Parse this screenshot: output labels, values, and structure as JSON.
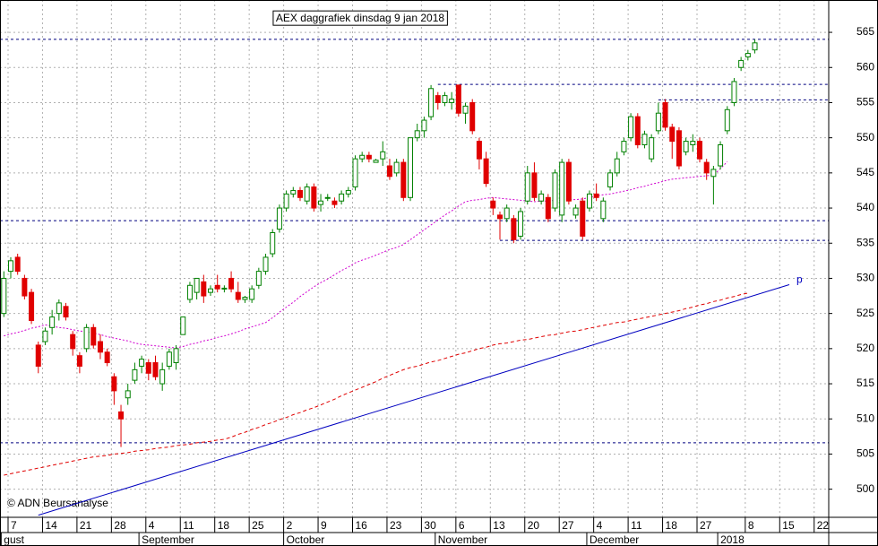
{
  "chart_data": {
    "type": "candlestick",
    "title": "AEX daggrafiek dinsdag 9 jan 2018",
    "credit": "© ADN Beursanalyse",
    "up_color": "#008000",
    "down_color": "#e00000",
    "up_fill": "#ffffff",
    "grid": true,
    "ylim": [
      496,
      569.6
    ],
    "yticks": [
      500,
      505,
      510,
      515,
      520,
      525,
      530,
      535,
      540,
      545,
      550,
      555,
      560,
      565
    ],
    "categories": [
      null,
      "7",
      null,
      null,
      null,
      null,
      "14",
      null,
      null,
      null,
      null,
      "21",
      null,
      null,
      null,
      null,
      "28",
      null,
      null,
      null,
      null,
      "4",
      null,
      null,
      null,
      null,
      "11",
      null,
      null,
      null,
      null,
      "18",
      null,
      null,
      null,
      null,
      "25",
      null,
      null,
      null,
      null,
      "2",
      null,
      null,
      null,
      null,
      "9",
      null,
      null,
      null,
      null,
      "16",
      null,
      null,
      null,
      null,
      "23",
      null,
      null,
      null,
      null,
      "30",
      null,
      null,
      null,
      null,
      "6",
      null,
      null,
      null,
      null,
      "13",
      null,
      null,
      null,
      null,
      "20",
      null,
      null,
      null,
      null,
      "27",
      null,
      null,
      null,
      null,
      "4",
      null,
      null,
      null,
      null,
      "11",
      null,
      null,
      null,
      null,
      "18",
      null,
      null,
      null,
      null,
      "27",
      null,
      null,
      null,
      null,
      null,
      null,
      "8",
      null,
      null,
      null,
      null,
      "15",
      null,
      null,
      null,
      null,
      "22",
      null
    ],
    "months": [
      {
        "label": "gust",
        "at": 0
      },
      {
        "label": "September",
        "at": 20
      },
      {
        "label": "October",
        "at": 41
      },
      {
        "label": "November",
        "at": 63
      },
      {
        "label": "December",
        "at": 85
      },
      {
        "label": "2018",
        "at": 104
      }
    ],
    "open": [
      525,
      531,
      533,
      530,
      528,
      520.5,
      521,
      523,
      525,
      526,
      522,
      519,
      520,
      523,
      521,
      519.5,
      516,
      511,
      513,
      515.5,
      517.5,
      518,
      518,
      515,
      517.5,
      518,
      522,
      527,
      528,
      529.5,
      528,
      529,
      528.5,
      530,
      528,
      527,
      527,
      529,
      531,
      533.5,
      537,
      540,
      542,
      542.5,
      541,
      543,
      540.5,
      541.5,
      541,
      541,
      542,
      543,
      547,
      547.5,
      546.5,
      547,
      546,
      545,
      546.5,
      541.5,
      550,
      551,
      553,
      556,
      555,
      555,
      557.5,
      553.5,
      555,
      549.5,
      547,
      541,
      539,
      538.5,
      538.5,
      536,
      541,
      545,
      541,
      541.5,
      540,
      539,
      546.5,
      539,
      541,
      540,
      542,
      538.5,
      543,
      545,
      548,
      550,
      553,
      549,
      547,
      551,
      555,
      551.5,
      551,
      548,
      549,
      549.5,
      546.5,
      544.5,
      546,
      551,
      555,
      560,
      561.5,
      562.5,
      null,
      null,
      null,
      null,
      null,
      null,
      null,
      null,
      null,
      null
    ],
    "high": [
      531,
      533,
      533.5,
      530.5,
      528.5,
      521,
      523,
      525.5,
      527,
      526.5,
      522.5,
      519.5,
      523.5,
      523.5,
      522,
      520,
      516.5,
      512,
      515,
      518,
      519,
      518.5,
      519,
      518,
      520,
      520.5,
      524.5,
      529.5,
      530,
      530.5,
      529,
      530.5,
      529,
      531,
      529.5,
      527.5,
      529,
      531.5,
      533.5,
      537,
      540.5,
      542.5,
      543,
      543,
      543.5,
      543.5,
      542,
      542,
      541.5,
      542.5,
      543,
      547.5,
      548,
      548,
      547,
      549.5,
      547,
      547,
      547,
      550,
      552,
      553,
      557.5,
      556.5,
      556.5,
      556.5,
      557.5,
      555,
      555.5,
      550,
      548,
      541.5,
      539.5,
      540.5,
      539,
      540,
      546,
      546.5,
      542.5,
      542,
      545.5,
      547,
      547,
      540.5,
      541.5,
      542.5,
      543.5,
      541.5,
      545.5,
      548,
      550,
      553.5,
      553.5,
      551,
      550.5,
      555,
      555.5,
      552,
      551.5,
      550,
      550.5,
      550,
      547,
      546,
      549.5,
      554.5,
      558.5,
      561.5,
      562.5,
      564,
      null,
      null,
      null,
      null,
      null,
      null,
      null,
      null,
      null,
      null
    ],
    "low": [
      524.5,
      530,
      530.5,
      527,
      523.5,
      516.5,
      520.5,
      522,
      524,
      524,
      519,
      516.5,
      519.5,
      520,
      518.5,
      517.5,
      512,
      506,
      512,
      515,
      516.5,
      515.5,
      515.5,
      514,
      517,
      517,
      522,
      526.5,
      527,
      526.5,
      527.5,
      528,
      528,
      528,
      526.5,
      526.5,
      526.5,
      528.5,
      530.5,
      533,
      536.5,
      539.5,
      541.5,
      541,
      540.5,
      539.5,
      539.5,
      541,
      540,
      540.5,
      541.5,
      542.5,
      546.5,
      546.5,
      546.5,
      546,
      544,
      544.5,
      541,
      541,
      549.5,
      550,
      552.5,
      554,
      554.5,
      554,
      553,
      552,
      550.5,
      545.5,
      543,
      539,
      535.5,
      538,
      535,
      535.5,
      540.5,
      541,
      540.5,
      538,
      539.5,
      538,
      540.5,
      538.5,
      535.5,
      539.5,
      541,
      538,
      542.5,
      544.5,
      547.5,
      549.5,
      548.5,
      548.5,
      546.5,
      550.5,
      551,
      547,
      545.5,
      547.5,
      548,
      546.5,
      544,
      540.5,
      545.5,
      550.5,
      554.5,
      559.5,
      561,
      562,
      null,
      null,
      null,
      null,
      null,
      null,
      null,
      null,
      null,
      null
    ],
    "close": [
      530,
      532.5,
      531,
      527.5,
      524,
      517.5,
      522.5,
      524.5,
      526.5,
      524.5,
      520,
      517.5,
      523,
      520.5,
      519.5,
      518,
      514,
      510,
      514,
      517,
      518.5,
      516.5,
      516,
      517,
      519.5,
      520,
      524.5,
      529,
      530,
      527.5,
      528.5,
      528.5,
      528.6,
      528.5,
      527,
      527.3,
      528.5,
      531,
      533,
      536.5,
      540,
      542,
      542.5,
      541.5,
      543,
      540,
      541,
      541.5,
      540.5,
      542,
      542.5,
      547,
      547.5,
      547,
      546.8,
      548,
      544.5,
      546.5,
      541.5,
      550,
      551,
      552.5,
      557,
      555,
      556,
      555.5,
      553.5,
      554.5,
      551,
      547,
      543.5,
      540,
      538.5,
      540,
      535.5,
      539.5,
      545,
      541.5,
      542,
      538.5,
      545,
      546.5,
      541,
      540,
      536,
      542,
      541.5,
      541,
      545,
      547,
      549.5,
      553,
      549,
      550.5,
      550,
      553.5,
      551.5,
      549.5,
      546,
      549.5,
      549.5,
      547,
      545,
      545.5,
      549,
      554,
      558,
      561,
      562,
      563.5,
      null,
      null,
      null,
      null,
      null,
      null,
      null,
      null,
      null,
      null
    ],
    "ma_short": {
      "color": "#d000d0",
      "values": [
        521.8,
        522.1,
        522.3,
        522.6,
        522.9,
        523.1,
        523.4,
        523.2,
        523.0,
        522.9,
        522.7,
        522.5,
        522.4,
        522.2,
        522.0,
        521.7,
        521.5,
        521.3,
        521.1,
        520.8,
        520.6,
        520.5,
        520.4,
        520.3,
        520.2,
        520.1,
        520.3,
        520.6,
        520.8,
        521.1,
        521.3,
        521.6,
        521.8,
        522.1,
        522.4,
        522.8,
        523.1,
        523.4,
        523.7,
        524.4,
        525.2,
        525.9,
        526.6,
        527.4,
        528.1,
        528.8,
        529.4,
        529.9,
        530.5,
        531.1,
        531.6,
        532.2,
        532.6,
        532.9,
        533.3,
        533.7,
        534.1,
        534.4,
        534.8,
        535.5,
        536.2,
        536.9,
        537.6,
        538.3,
        539.0,
        539.6,
        540.3,
        540.9,
        541.1,
        541.2,
        541.4,
        541.5,
        541.4,
        541.3,
        541.2,
        541.1,
        541.0,
        540.9,
        541.0,
        541.0,
        541.1,
        541.1,
        541.2,
        541.2,
        541.3,
        541.5,
        541.7,
        541.9,
        542.0,
        542.2,
        542.4,
        542.6,
        542.9,
        543.1,
        543.4,
        543.6,
        543.9,
        544.1,
        544.2,
        544.3,
        544.4,
        544.5,
        544.6,
        544.7,
        545.6,
        546.6,
        null,
        null,
        null,
        null,
        null,
        null,
        null,
        null,
        null,
        null,
        null,
        null,
        null,
        null
      ]
    },
    "ma_long": {
      "color": "#e00000",
      "values": [
        502.0,
        502.2,
        502.4,
        502.6,
        502.8,
        503.0,
        503.2,
        503.4,
        503.6,
        503.8,
        504.0,
        504.2,
        504.4,
        504.6,
        504.7,
        504.8,
        505.0,
        505.1,
        505.2,
        505.4,
        505.5,
        505.6,
        505.8,
        505.9,
        506.0,
        506.2,
        506.3,
        506.4,
        506.6,
        506.7,
        506.8,
        507.0,
        507.1,
        507.4,
        507.8,
        508.1,
        508.5,
        508.8,
        509.2,
        509.5,
        509.9,
        510.2,
        510.6,
        510.9,
        511.3,
        511.6,
        512.0,
        512.4,
        512.8,
        513.3,
        513.7,
        514.1,
        514.5,
        514.9,
        515.3,
        515.8,
        516.2,
        516.6,
        517.0,
        517.3,
        517.5,
        517.8,
        518.1,
        518.3,
        518.6,
        518.9,
        519.2,
        519.4,
        519.7,
        520.0,
        520.2,
        520.5,
        520.7,
        520.8,
        521.0,
        521.2,
        521.3,
        521.5,
        521.7,
        521.9,
        522.0,
        522.2,
        522.4,
        522.5,
        522.7,
        522.9,
        523.1,
        523.3,
        523.5,
        523.7,
        523.8,
        524.0,
        524.2,
        524.4,
        524.6,
        524.8,
        525.0,
        525.2,
        525.4,
        525.7,
        525.9,
        526.2,
        526.4,
        526.7,
        526.9,
        527.2,
        527.4,
        527.7,
        527.9,
        null,
        null,
        null,
        null,
        null,
        null,
        null,
        null,
        null,
        null,
        null
      ]
    },
    "trendline": {
      "label": "p",
      "color": "#0000c0",
      "start": [
        5,
        496.3
      ],
      "end": [
        114,
        529.1
      ]
    },
    "levels": {
      "color": "#000080",
      "items": [
        {
          "value": 564,
          "from": 0
        },
        {
          "value": 557.6,
          "from": 63
        },
        {
          "value": 555.4,
          "from": 95
        },
        {
          "value": 538.2,
          "from": 0
        },
        {
          "value": 535.4,
          "from": 72
        },
        {
          "value": 506.6,
          "from": 0
        }
      ]
    }
  }
}
